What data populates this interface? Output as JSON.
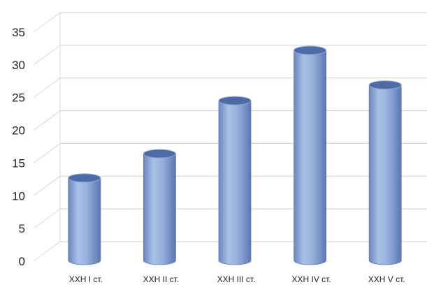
{
  "chart_data": {
    "type": "bar",
    "style": "3d-cylinder",
    "categories": [
      "ХХН І ст.",
      "ХХН ІІ ст.",
      "ХХН ІІІ ст.",
      "ХХН IV ст.",
      "ХХН V ст."
    ],
    "values": [
      12.5,
      16.2,
      24.3,
      32,
      26.7
    ],
    "ylim": [
      0,
      35
    ],
    "yticks": [
      0,
      5,
      10,
      15,
      20,
      25,
      30,
      35
    ],
    "grid": true,
    "legend": "none",
    "colors": {
      "bar": "#95b0dc",
      "bar_dark": "#5b78b3",
      "top": "#4d6ba6",
      "grid": "#cfcfcf"
    }
  }
}
